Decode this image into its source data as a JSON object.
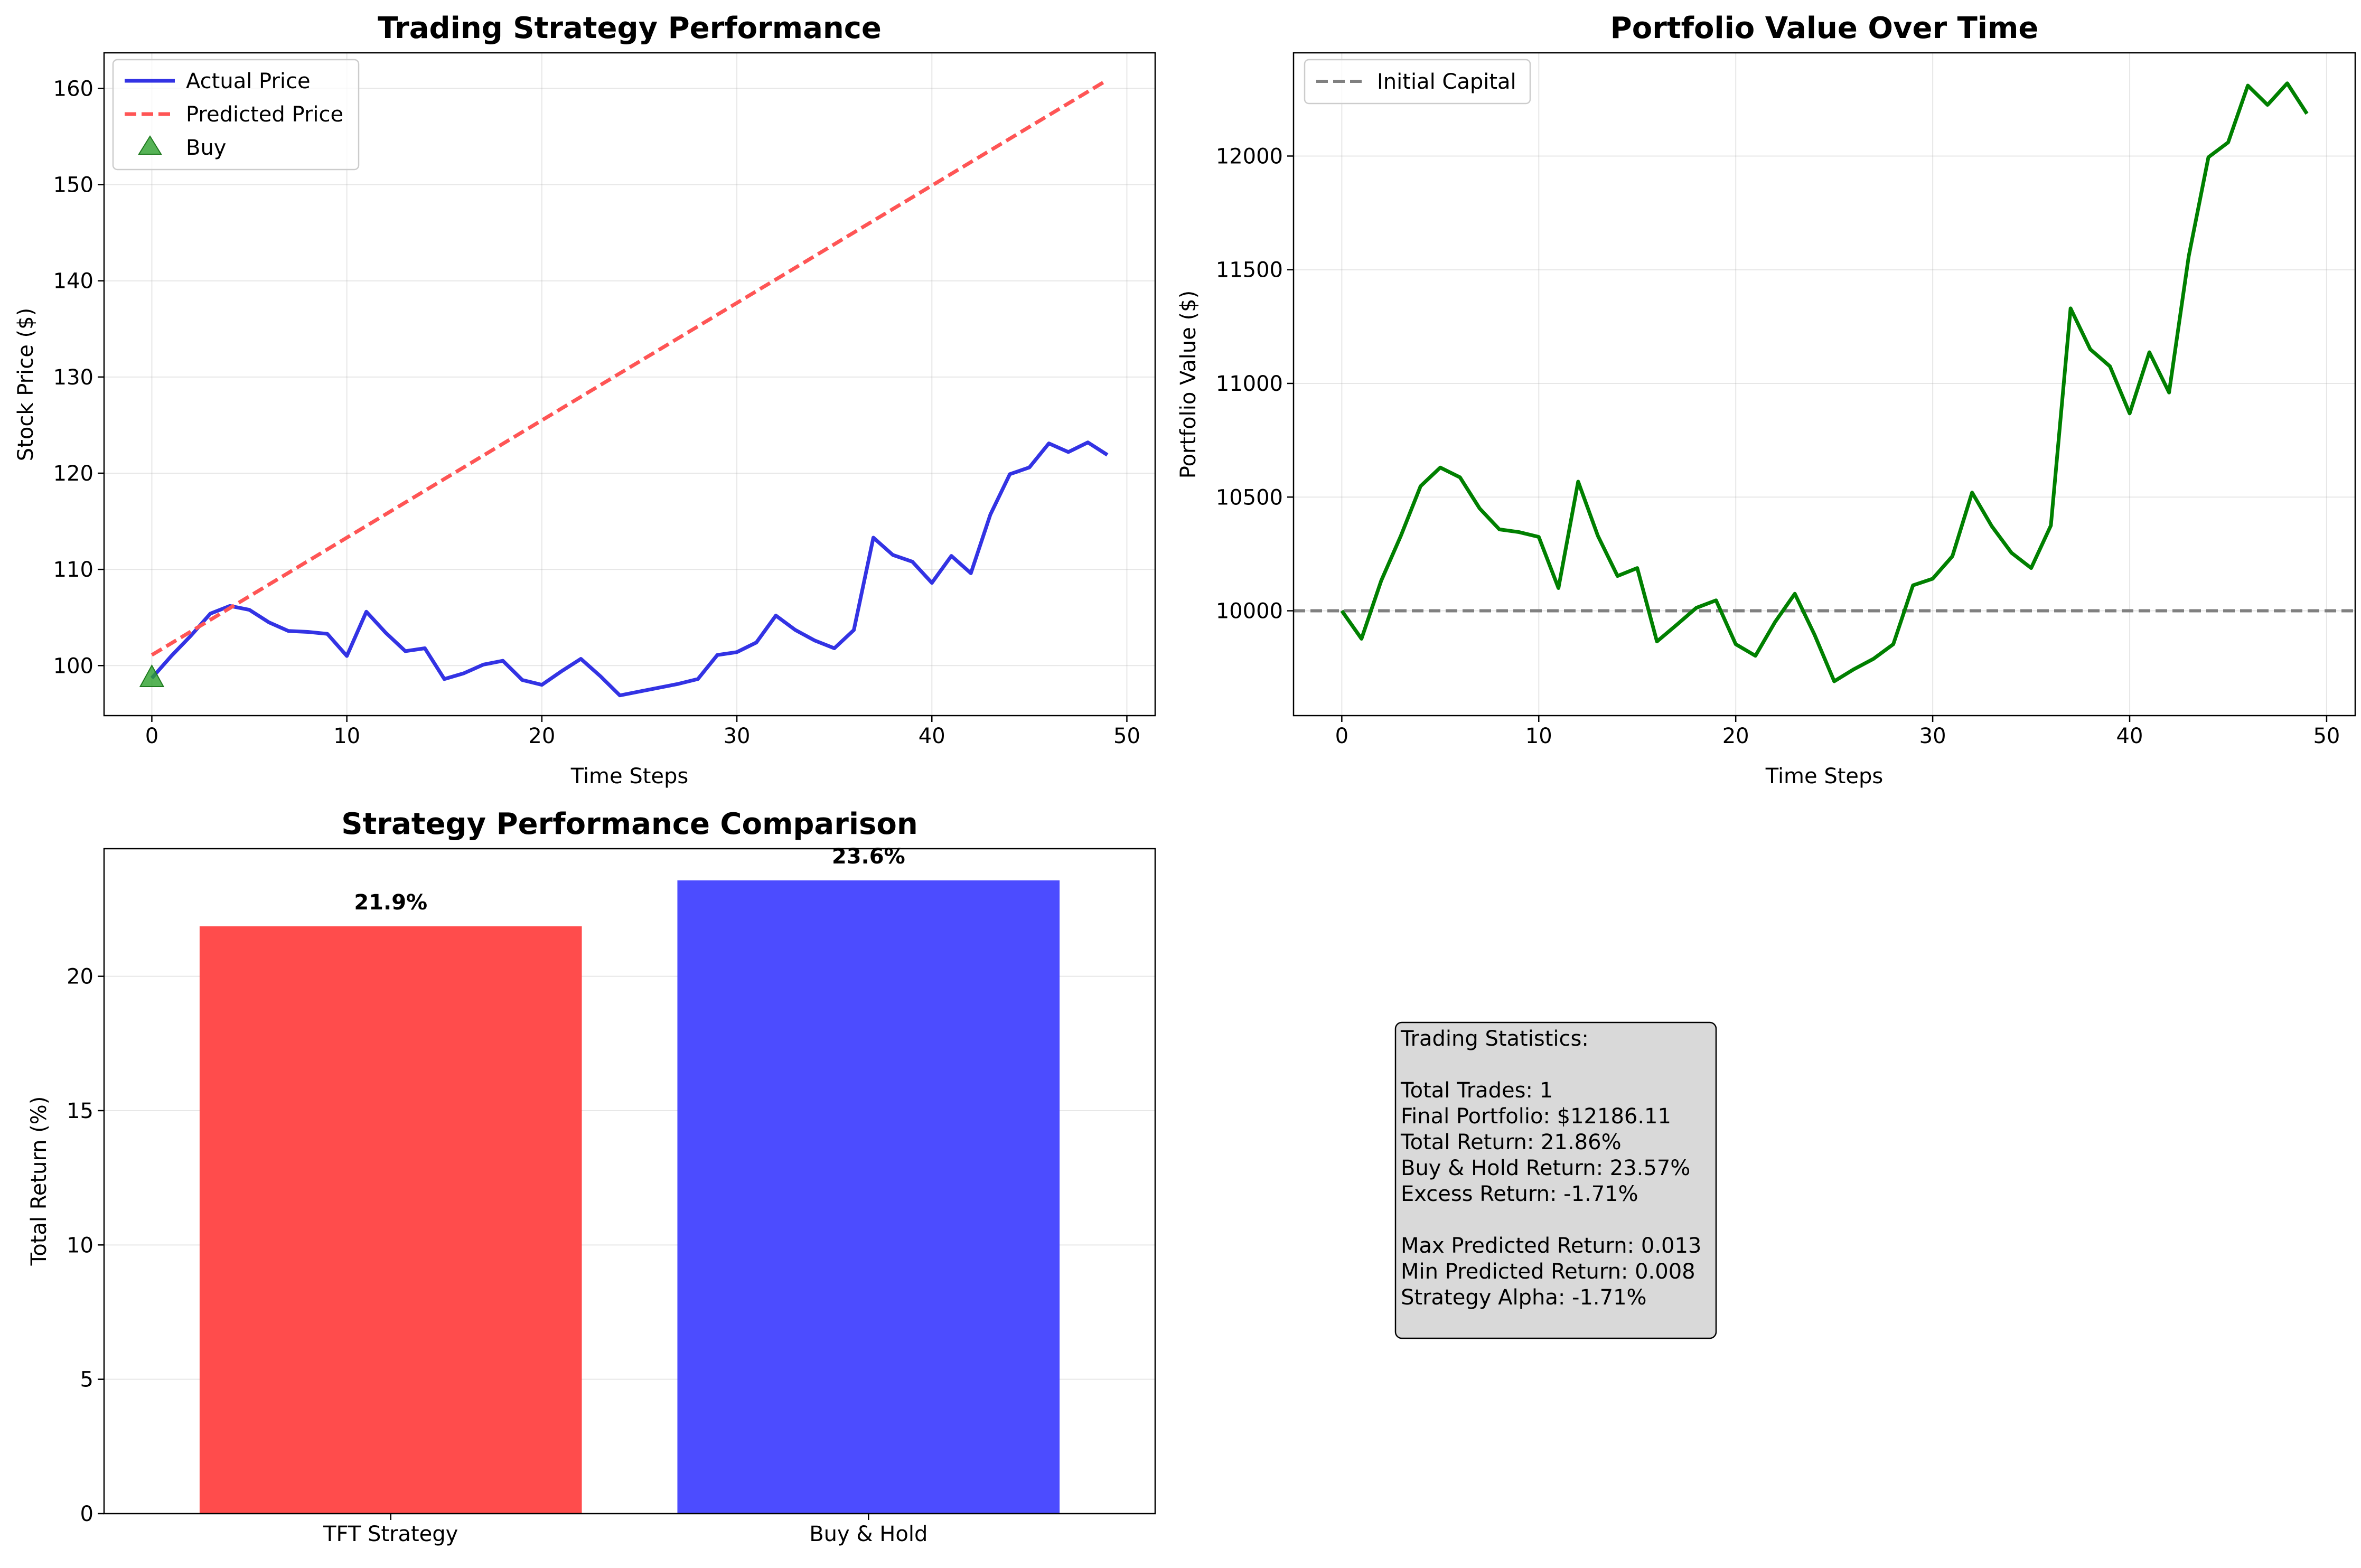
{
  "chart_data": [
    {
      "type": "line",
      "title": "Trading Strategy Performance",
      "xlabel": "Time Steps",
      "ylabel": "Stock Price ($)",
      "xlim": [
        -2.45,
        51.45
      ],
      "ylim": [
        94.8,
        163.7
      ],
      "xticks": [
        0,
        10,
        20,
        30,
        40,
        50
      ],
      "yticks": [
        100,
        110,
        120,
        130,
        140,
        150,
        160
      ],
      "grid": true,
      "legend_position": "upper left",
      "x": [
        0,
        1,
        2,
        3,
        4,
        5,
        6,
        7,
        8,
        9,
        10,
        11,
        12,
        13,
        14,
        15,
        16,
        17,
        18,
        19,
        20,
        21,
        22,
        23,
        24,
        25,
        26,
        27,
        28,
        29,
        30,
        31,
        32,
        33,
        34,
        35,
        36,
        37,
        38,
        39,
        40,
        41,
        42,
        43,
        44,
        45,
        46,
        47,
        48,
        49
      ],
      "series": [
        {
          "name": "Actual Price",
          "color": "#0000dd",
          "style": "solid",
          "values": [
            98.7,
            101.0,
            103.1,
            105.4,
            106.2,
            105.8,
            104.5,
            103.6,
            103.5,
            103.3,
            101.0,
            105.6,
            103.4,
            101.5,
            101.8,
            98.6,
            99.2,
            100.1,
            100.5,
            98.5,
            98.0,
            99.4,
            100.7,
            98.9,
            96.9,
            97.3,
            97.7,
            98.1,
            98.6,
            101.1,
            101.4,
            102.4,
            105.2,
            103.7,
            102.6,
            101.8,
            103.7,
            113.3,
            111.5,
            110.8,
            108.6,
            111.4,
            109.6,
            115.7,
            119.9,
            120.6,
            123.1,
            122.2,
            123.2,
            121.9
          ]
        },
        {
          "name": "Predicted Price",
          "color": "#ff5555",
          "style": "dashed",
          "values": [
            101.1,
            102.32,
            103.54,
            104.76,
            105.98,
            107.2,
            108.42,
            109.64,
            110.86,
            112.08,
            113.3,
            114.52,
            115.74,
            116.96,
            118.18,
            119.4,
            120.62,
            121.84,
            123.06,
            124.28,
            125.5,
            126.72,
            127.94,
            129.16,
            130.38,
            131.6,
            132.82,
            134.04,
            135.26,
            136.48,
            137.7,
            138.92,
            140.14,
            141.36,
            142.58,
            143.8,
            145.02,
            146.24,
            147.46,
            148.68,
            149.9,
            151.12,
            152.34,
            153.56,
            154.78,
            156.0,
            157.22,
            158.44,
            159.66,
            160.88
          ]
        }
      ],
      "markers": [
        {
          "name": "Buy",
          "color": "#2ca02c",
          "shape": "triangle-up",
          "points": [
            {
              "x": 0,
              "y": 98.7
            }
          ]
        }
      ]
    },
    {
      "type": "line",
      "title": "Portfolio Value Over Time",
      "xlabel": "Time Steps",
      "ylabel": "Portfolio Value ($)",
      "xlim": [
        -2.45,
        51.45
      ],
      "ylim": [
        9539,
        12454
      ],
      "xticks": [
        0,
        10,
        20,
        30,
        40,
        50
      ],
      "yticks": [
        10000,
        10500,
        11000,
        11500,
        12000
      ],
      "grid": true,
      "legend_position": "upper left",
      "x": [
        0,
        1,
        2,
        3,
        4,
        5,
        6,
        7,
        8,
        9,
        10,
        11,
        12,
        13,
        14,
        15,
        16,
        17,
        18,
        19,
        20,
        21,
        22,
        23,
        24,
        25,
        26,
        27,
        28,
        29,
        30,
        31,
        32,
        33,
        34,
        35,
        36,
        37,
        38,
        39,
        40,
        41,
        42,
        43,
        44,
        45,
        46,
        47,
        48,
        49
      ],
      "series": [
        {
          "name": "Portfolio Value",
          "color": "#008000",
          "style": "solid",
          "show_in_legend": false,
          "values": [
            10000,
            9877,
            10132,
            10330,
            10548,
            10630,
            10587,
            10450,
            10358,
            10346,
            10325,
            10100,
            10568,
            10330,
            10153,
            10188,
            9865,
            9938,
            10013,
            10046,
            9853,
            9802,
            9951,
            10075,
            9895,
            9690,
            9743,
            9789,
            9853,
            10112,
            10141,
            10240,
            10520,
            10372,
            10255,
            10188,
            10375,
            11330,
            11150,
            11075,
            10868,
            11137,
            10960,
            11560,
            11995,
            12060,
            12310,
            12225,
            12320,
            12186.11
          ]
        }
      ],
      "reference_lines": [
        {
          "name": "Initial Capital",
          "y": 10000,
          "color": "#808080",
          "style": "dashed"
        }
      ]
    },
    {
      "type": "bar",
      "title": "Strategy Performance Comparison",
      "xlabel": "",
      "ylabel": "Total Return (%)",
      "ylim": [
        0,
        24.75
      ],
      "yticks": [
        0,
        5,
        10,
        15,
        20
      ],
      "grid": true,
      "categories": [
        "TFT Strategy",
        "Buy & Hold"
      ],
      "values": [
        21.86,
        23.57
      ],
      "colors": [
        "#ff4c4c",
        "#4c4cff"
      ],
      "data_labels": [
        "21.9%",
        "23.6%"
      ]
    }
  ],
  "stats_box": {
    "lines": [
      "Trading Statistics:",
      "",
      "Total Trades: 1",
      "Final Portfolio: $12186.11",
      "Total Return: 21.86%",
      "Buy & Hold Return: 23.57%",
      "Excess Return: -1.71%",
      "",
      "Max Predicted Return: 0.013",
      "Min Predicted Return: 0.008",
      "Strategy Alpha: -1.71%"
    ],
    "background": "#d9d9d9"
  }
}
